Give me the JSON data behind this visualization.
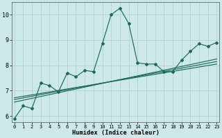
{
  "xlabel": "Humidex (Indice chaleur)",
  "background_color": "#cce8e8",
  "grid_color": "#b8d4d4",
  "line_color": "#1a6b5a",
  "x_main": [
    0,
    1,
    2,
    3,
    4,
    5,
    6,
    7,
    8,
    9,
    10,
    11,
    12,
    13,
    14,
    15,
    16,
    17,
    18,
    19,
    20,
    21,
    22,
    23
  ],
  "y_main": [
    5.9,
    6.4,
    6.3,
    7.3,
    7.2,
    6.95,
    7.7,
    7.55,
    7.8,
    7.75,
    8.85,
    10.0,
    10.25,
    9.65,
    8.1,
    8.05,
    8.05,
    7.75,
    7.75,
    8.2,
    8.55,
    8.85,
    8.75,
    8.9
  ],
  "ylim": [
    5.75,
    10.5
  ],
  "xlim": [
    -0.3,
    23.3
  ],
  "yticks": [
    6,
    7,
    8,
    9,
    10
  ],
  "xticks": [
    0,
    1,
    2,
    3,
    4,
    5,
    6,
    7,
    8,
    9,
    10,
    11,
    12,
    13,
    14,
    15,
    16,
    17,
    18,
    19,
    20,
    21,
    22,
    23
  ],
  "reg_lines": [
    {
      "x0": 0,
      "y0": 6.55,
      "x1": 23,
      "y1": 8.25
    },
    {
      "x0": 0,
      "y0": 6.65,
      "x1": 23,
      "y1": 8.15
    },
    {
      "x0": 0,
      "y0": 6.72,
      "x1": 23,
      "y1": 8.05
    }
  ]
}
